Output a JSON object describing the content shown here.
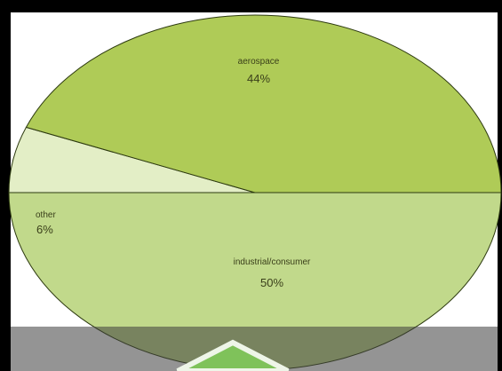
{
  "chart_data": {
    "type": "pie",
    "title": "",
    "slices": [
      {
        "label": "aerospace",
        "value": 44,
        "display": "44%",
        "color": "#afcb57"
      },
      {
        "label": "industrial/consumer",
        "value": 50,
        "display": "50%",
        "color": "#c1d98b"
      },
      {
        "label": "other",
        "value": 6,
        "display": "6%",
        "color": "#e3eec6"
      }
    ],
    "legend": "none",
    "colors": {
      "background": "#ffffff",
      "frame": "#000000",
      "slice_edge": "#2d3a10"
    }
  }
}
